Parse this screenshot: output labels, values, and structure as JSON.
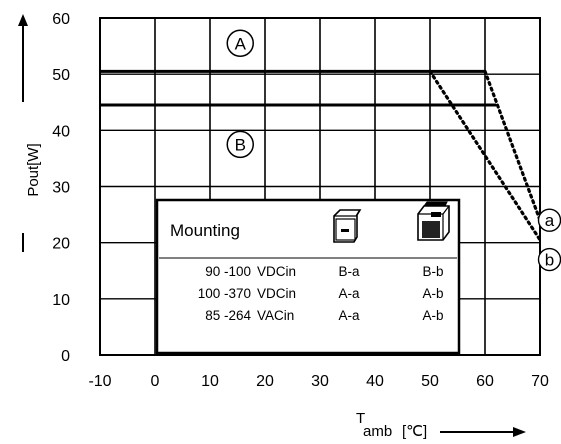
{
  "chart_data": {
    "type": "line",
    "xlabel_main": "T",
    "xlabel_sub": "amb",
    "xlabel_unit": "[℃]",
    "ylabel": "Pout[W]",
    "xlim": [
      -10,
      70
    ],
    "ylim": [
      0,
      60
    ],
    "x_ticks": [
      "-10",
      "0",
      "10",
      "20",
      "30",
      "40",
      "50",
      "60",
      "70"
    ],
    "y_ticks": [
      "0",
      "10",
      "20",
      "30",
      "40",
      "50",
      "60"
    ],
    "x_tick_values": [
      -10,
      0,
      10,
      20,
      30,
      40,
      50,
      60,
      70
    ],
    "y_tick_values": [
      0,
      10,
      20,
      30,
      40,
      50,
      60
    ],
    "grid": true,
    "regions": [
      {
        "label": "A",
        "x": 15.5,
        "y": 55.5
      },
      {
        "label": "B",
        "x": 15.5,
        "y": 37.5
      }
    ],
    "series": [
      {
        "label": "a",
        "style": "solid",
        "x": [
          -10,
          60
        ],
        "y": [
          50.5,
          50.5
        ]
      },
      {
        "label": "a",
        "style": "dotted",
        "x": [
          60,
          70
        ],
        "y": [
          50.5,
          24
        ]
      },
      {
        "label": "b",
        "style": "solid",
        "x": [
          -10,
          62
        ],
        "y": [
          44.5,
          44.5
        ]
      },
      {
        "label": "b",
        "style": "dotted",
        "x": [
          50,
          70
        ],
        "y": [
          50.5,
          20.5
        ]
      }
    ],
    "curve_labels": [
      {
        "text": "a",
        "x": 71,
        "y": 24
      },
      {
        "text": "b",
        "x": 71,
        "y": 17
      }
    ],
    "table": {
      "title": "Mounting",
      "rows": [
        {
          "range": "90 -100",
          "type": "VDCin",
          "col1": "B-a",
          "col2": "B-b"
        },
        {
          "range": "100 -370",
          "type": "VDCin",
          "col1": "A-a",
          "col2": "A-b"
        },
        {
          "range": "85 -264",
          "type": "VACin",
          "col1": "A-a",
          "col2": "A-b"
        }
      ]
    }
  },
  "icons": {
    "mount_col1": "horizontal-mount-icon",
    "mount_col2": "vertical-mount-icon"
  }
}
